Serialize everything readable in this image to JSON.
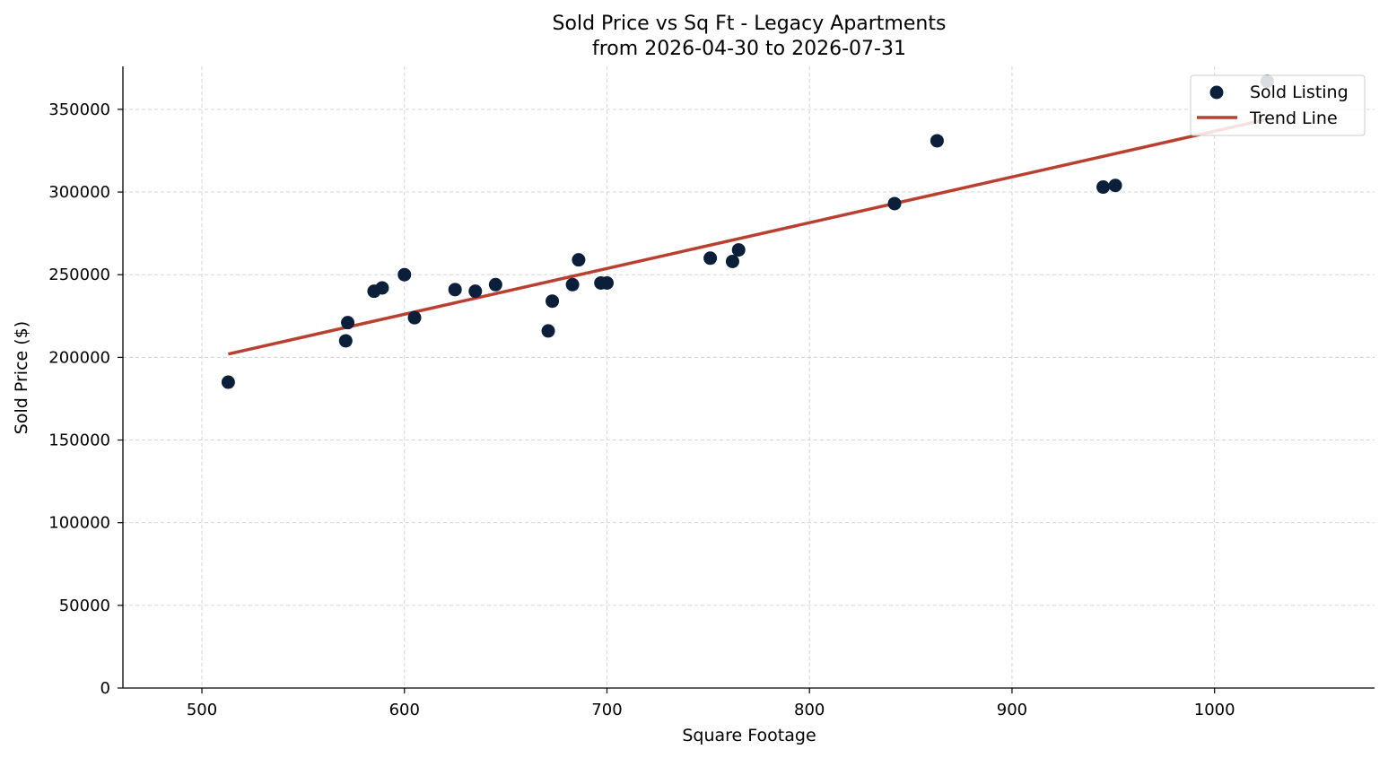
{
  "chart_data": {
    "type": "scatter",
    "title_line1": "Sold Price vs Sq Ft - Legacy Apartments",
    "title_line2": "from 2026-04-30 to 2026-07-31",
    "xlabel": "Square Footage",
    "ylabel": "Sold Price ($)",
    "xlim": [
      461,
      1079
    ],
    "ylim": [
      0,
      376000
    ],
    "xticks": [
      500,
      600,
      700,
      800,
      900,
      1000
    ],
    "yticks": [
      0,
      50000,
      100000,
      150000,
      200000,
      250000,
      300000,
      350000
    ],
    "grid": true,
    "legend_position": "top-right",
    "colors": {
      "points": "#0b1f3a",
      "trend": "#b84030"
    },
    "series": [
      {
        "name": "Sold Listing",
        "kind": "scatter",
        "points": [
          {
            "x": 513,
            "y": 185000
          },
          {
            "x": 571,
            "y": 210000
          },
          {
            "x": 572,
            "y": 221000
          },
          {
            "x": 585,
            "y": 240000
          },
          {
            "x": 589,
            "y": 242000
          },
          {
            "x": 600,
            "y": 250000
          },
          {
            "x": 605,
            "y": 224000
          },
          {
            "x": 625,
            "y": 241000
          },
          {
            "x": 635,
            "y": 240000
          },
          {
            "x": 645,
            "y": 244000
          },
          {
            "x": 671,
            "y": 216000
          },
          {
            "x": 673,
            "y": 234000
          },
          {
            "x": 683,
            "y": 244000
          },
          {
            "x": 686,
            "y": 259000
          },
          {
            "x": 697,
            "y": 245000
          },
          {
            "x": 700,
            "y": 245000
          },
          {
            "x": 751,
            "y": 260000
          },
          {
            "x": 762,
            "y": 258000
          },
          {
            "x": 765,
            "y": 265000
          },
          {
            "x": 842,
            "y": 293000
          },
          {
            "x": 863,
            "y": 331000
          },
          {
            "x": 945,
            "y": 303000
          },
          {
            "x": 951,
            "y": 304000
          },
          {
            "x": 1026,
            "y": 367000
          }
        ]
      },
      {
        "name": "Trend Line",
        "kind": "line",
        "points": [
          {
            "x": 513,
            "y": 202000
          },
          {
            "x": 1026,
            "y": 344000
          }
        ]
      }
    ]
  }
}
